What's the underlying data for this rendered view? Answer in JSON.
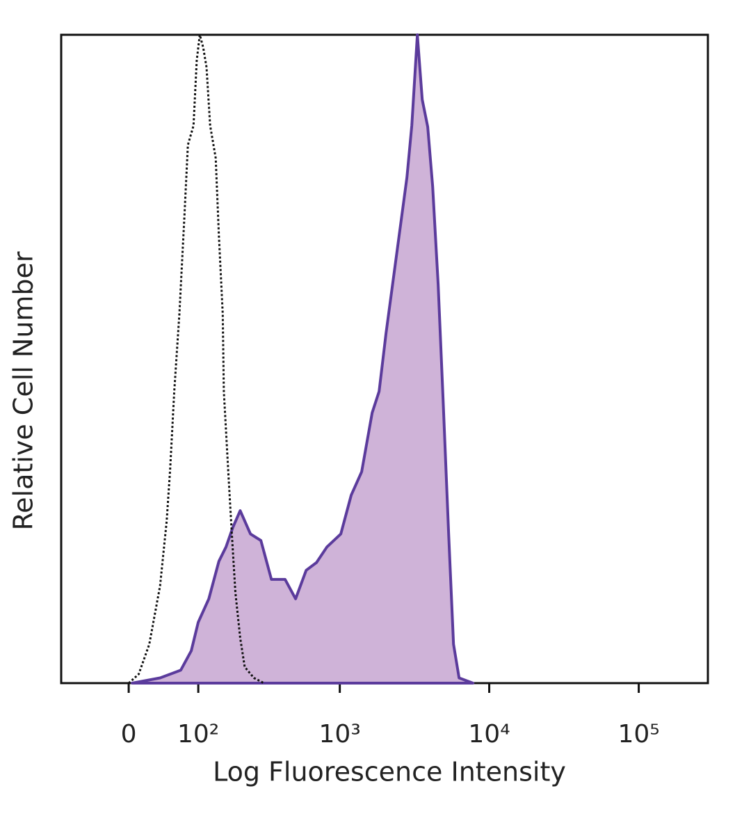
{
  "chart_data": {
    "type": "histogram-overlay",
    "xlabel": "Log Fluorescence Intensity",
    "ylabel": "Relative Cell Number",
    "xscale": "biexponential",
    "xlim": [
      -96,
      290000
    ],
    "ylim": [
      0,
      100
    ],
    "xticks": [
      0,
      {
        "value": 100,
        "label": "10²"
      },
      {
        "value": 1000,
        "label": "10³"
      },
      {
        "value": 10000,
        "label": "10⁴"
      },
      {
        "value": 100000,
        "label": "10⁵"
      }
    ],
    "series": [
      {
        "color": "#111111",
        "style": "dotted",
        "filled": false,
        "x": [
          0,
          12,
          25,
          39,
          48,
          53,
          59,
          67,
          75,
          81,
          91,
          97,
          103,
          110,
          117,
          125,
          138,
          146,
          156,
          159,
          172,
          182,
          193,
          209,
          225,
          261,
          307
        ],
        "values": [
          0,
          1.4,
          6,
          15,
          25,
          33,
          45,
          57,
          72,
          83,
          86,
          96,
          100,
          98,
          95,
          86,
          81,
          69,
          57,
          45,
          32,
          23,
          14,
          7,
          2.5,
          0.8,
          0
        ]
      },
      {
        "color": "#5b3b9c",
        "fill": "#cfb3d8",
        "style": "solid",
        "filled": true,
        "x": [
          4.2,
          39,
          69,
          87,
          100,
          122,
          146,
          165,
          185,
          209,
          247,
          292,
          345,
          428,
          504,
          594,
          698,
          819,
          1016,
          1193,
          1402,
          1647,
          1834,
          2041,
          2273,
          2530,
          2816,
          3035,
          3307,
          3565,
          3880,
          4183,
          4556,
          4910,
          5352,
          5770,
          6285,
          7786
        ],
        "values": [
          0,
          0.8,
          2,
          5,
          9.4,
          13,
          18.8,
          21,
          24,
          26.6,
          23,
          22,
          16,
          16,
          13,
          17.4,
          18.6,
          21,
          23,
          29,
          32.6,
          41.7,
          45,
          54,
          62,
          70,
          78,
          86,
          100,
          90,
          85.8,
          76.6,
          61.5,
          44,
          23,
          6,
          0.8,
          0
        ]
      }
    ]
  }
}
